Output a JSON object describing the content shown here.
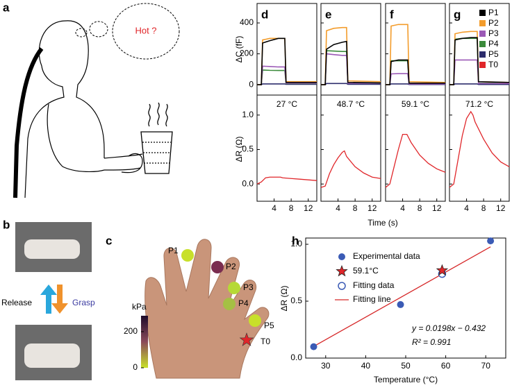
{
  "figure": {
    "panel_labels": [
      "a",
      "b",
      "c",
      "d",
      "e",
      "f",
      "g",
      "h"
    ],
    "thought": "Hot ?",
    "release": "Release",
    "grasp": "Grasp"
  },
  "hand_map": {
    "colorbar_title": "kPa",
    "colorbar_lim": [
      0,
      288
    ],
    "colorbar_ticks": [
      0,
      200
    ],
    "points": [
      {
        "label": "P1",
        "color": "#c8e02a"
      },
      {
        "label": "P2",
        "color": "#7a2d50"
      },
      {
        "label": "P3",
        "color": "#b6d936"
      },
      {
        "label": "P4",
        "color": "#a5c044"
      },
      {
        "label": "P5",
        "color": "#c8e02a"
      },
      {
        "label": "T0",
        "color": "#e0262a"
      }
    ]
  },
  "chart_data": [
    {
      "type": "line-panels",
      "xlabel": "Time (s)",
      "ylabel_c": "ΔC (fF)",
      "ylabel_r": "ΔR (Ω)",
      "xlim": [
        0,
        14
      ],
      "xticks": [
        4,
        8,
        12
      ],
      "ylim_c": [
        -67,
        526
      ],
      "yticks_c": [
        0,
        200,
        400
      ],
      "ylim_r": [
        -0.25,
        1.29
      ],
      "yticks_r": [
        {
          "value": 0,
          "label": "0.0"
        },
        {
          "value": 0.5,
          "label": "0.5"
        },
        {
          "value": 1,
          "label": "1.0"
        }
      ],
      "legend": [
        {
          "name": "P1",
          "color": "#000000"
        },
        {
          "name": "P2",
          "color": "#f39c2b"
        },
        {
          "name": "P3",
          "color": "#9b59b6"
        },
        {
          "name": "P4",
          "color": "#3a8a3a"
        },
        {
          "name": "P5",
          "color": "#2c2c6c"
        },
        {
          "name": "T0",
          "color": "#e0262a"
        }
      ],
      "r_x": [
        0,
        1,
        2,
        3,
        4,
        5,
        5.5,
        6,
        8,
        10,
        12,
        14
      ],
      "panels": [
        {
          "annotation": "27 °C",
          "x": [
            0,
            1,
            1.3,
            3,
            5,
            6.5,
            6.8,
            14
          ],
          "series": [
            [
              0,
              0,
              270,
              285,
              300,
              300,
              15,
              15
            ],
            [
              0,
              0,
              290,
              300,
              300,
              300,
              20,
              20
            ],
            [
              0,
              0,
              120,
              118,
              115,
              115,
              10,
              10
            ],
            [
              0,
              0,
              95,
              93,
              92,
              92,
              8,
              8
            ],
            [
              0,
              0,
              5,
              5,
              5,
              5,
              3,
              3
            ]
          ],
          "r_values": [
            0,
            0.03,
            0.09,
            0.1,
            0.1,
            0.1,
            0.1,
            0.09,
            0.08,
            0.07,
            0.06,
            0.05
          ]
        },
        {
          "annotation": "48.7 °C",
          "x": [
            0,
            1,
            1.3,
            3,
            5,
            6,
            6.3,
            14
          ],
          "series": [
            [
              0,
              0,
              230,
              260,
              275,
              280,
              15,
              12
            ],
            [
              0,
              0,
              350,
              365,
              370,
              370,
              25,
              20
            ],
            [
              0,
              0,
              200,
              195,
              190,
              190,
              10,
              10
            ],
            [
              0,
              0,
              220,
              218,
              215,
              215,
              12,
              10
            ],
            [
              0,
              0,
              8,
              8,
              8,
              8,
              3,
              3
            ]
          ],
          "r_values": [
            -0.05,
            -0.03,
            0.15,
            0.28,
            0.38,
            0.46,
            0.48,
            0.4,
            0.25,
            0.16,
            0.1,
            0.08
          ]
        },
        {
          "annotation": "59.1 °C",
          "x": [
            0,
            1,
            1.3,
            3,
            4.5,
            5.2,
            5.5,
            14
          ],
          "series": [
            [
              0,
              0,
              150,
              160,
              160,
              160,
              10,
              10
            ],
            [
              0,
              0,
              380,
              390,
              390,
              390,
              20,
              15
            ],
            [
              0,
              0,
              70,
              72,
              72,
              72,
              5,
              5
            ],
            [
              0,
              0,
              155,
              155,
              155,
              155,
              8,
              8
            ],
            [
              0,
              0,
              5,
              5,
              5,
              5,
              2,
              2
            ]
          ],
          "r_values": [
            -0.05,
            0,
            0.25,
            0.5,
            0.72,
            0.72,
            0.66,
            0.6,
            0.42,
            0.3,
            0.22,
            0.17
          ]
        },
        {
          "annotation": "71.2 °C",
          "x": [
            0,
            1,
            1.3,
            3,
            5,
            6.5,
            6.8,
            14
          ],
          "series": [
            [
              0,
              0,
              290,
              300,
              305,
              305,
              20,
              15
            ],
            [
              0,
              0,
              330,
              340,
              345,
              345,
              20,
              15
            ],
            [
              0,
              0,
              160,
              160,
              160,
              160,
              8,
              8
            ],
            [
              0,
              0,
              295,
              300,
              300,
              300,
              10,
              10
            ],
            [
              0,
              0,
              5,
              5,
              5,
              5,
              2,
              2
            ]
          ],
          "r_values": [
            -0.05,
            0,
            0.35,
            0.7,
            0.95,
            1.05,
            1,
            0.9,
            0.65,
            0.45,
            0.32,
            0.25
          ]
        }
      ]
    },
    {
      "type": "scatter",
      "xlabel": "Temperature (°C)",
      "ylabel": "ΔR (Ω)",
      "xlim": [
        25,
        75
      ],
      "xticks": [
        30,
        40,
        50,
        60,
        70
      ],
      "ylim": [
        0,
        1.055
      ],
      "yticks": [
        {
          "value": 0,
          "label": "0.0"
        },
        {
          "value": 0.5,
          "label": "0.5"
        },
        {
          "value": 1,
          "label": "1.0"
        }
      ],
      "series": [
        {
          "name": "Experimental data",
          "color": "#3b5bb5",
          "x": [
            27,
            48.7,
            71.2
          ],
          "values": [
            0.1,
            0.47,
            1.03
          ]
        },
        {
          "name": "59.1°C",
          "color": "#e0262a",
          "x": [
            59.1
          ],
          "values": [
            0.77
          ]
        },
        {
          "name": "Fitting data",
          "color": "#3b5bb5",
          "x": [
            59.1
          ],
          "values": [
            0.74
          ]
        },
        {
          "name": "Fitting line",
          "color": "#d62728",
          "x": [
            27,
            71.2
          ],
          "values": [
            0.1026,
            0.9778
          ]
        }
      ],
      "annotations": [
        "y = 0.0198x − 0.432",
        "R² = 0.991"
      ]
    }
  ]
}
